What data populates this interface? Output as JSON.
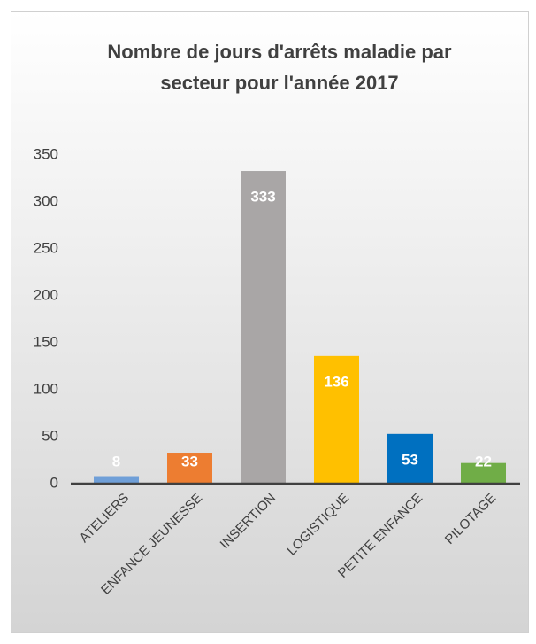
{
  "chart_data": {
    "type": "bar",
    "title": [
      "Nombre de jours d'arrêts maladie par",
      "secteur pour l'année 2017"
    ],
    "categories": [
      "ATELIERS",
      "ENFANCE JEUNESSE",
      "INSERTION",
      "LOGISTIQUE",
      "PETITE ENFANCE",
      "PILOTAGE"
    ],
    "values": [
      8,
      33,
      333,
      136,
      53,
      22
    ],
    "colors": [
      "#6f9fd8",
      "#ed7d31",
      "#a9a6a6",
      "#ffc000",
      "#0070c0",
      "#70ad47"
    ],
    "ylim": [
      0,
      350
    ],
    "yticks": [
      0,
      50,
      100,
      150,
      200,
      250,
      300,
      350
    ],
    "grid": false
  }
}
